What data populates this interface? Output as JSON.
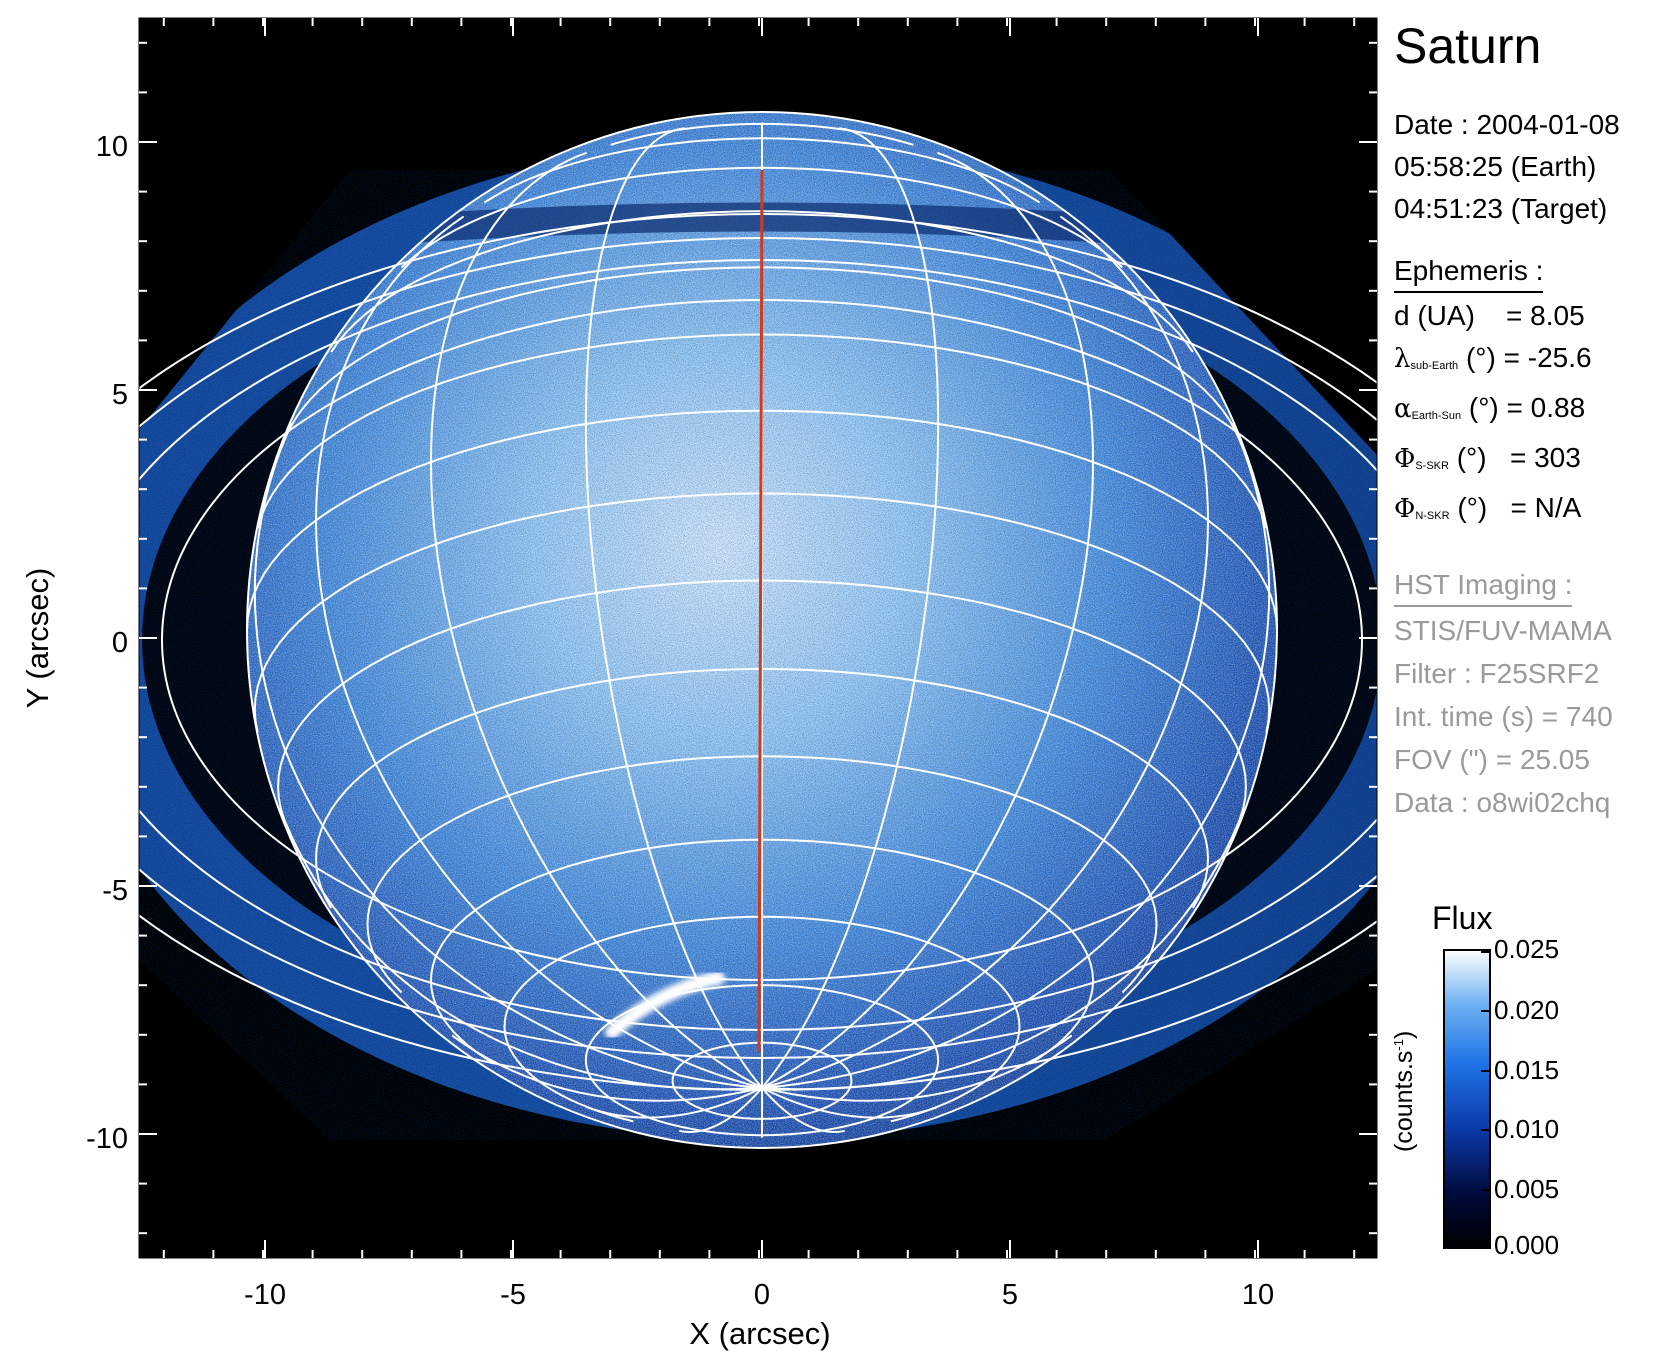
{
  "figure": {
    "x_axis": {
      "label": "X (arcsec)",
      "ticks": [
        "-10",
        "-5",
        "0",
        "5",
        "10"
      ]
    },
    "y_axis": {
      "label": "Y (arcsec)",
      "ticks": [
        "10",
        "5",
        "0",
        "-5",
        "-10"
      ]
    },
    "x_range": [
      -12.5,
      12.5
    ],
    "y_range": [
      -12.5,
      12.5
    ],
    "image_colormap": [
      "#000000",
      "#000a3c",
      "#0a3aa8",
      "#1f73e6",
      "#6fb2f2",
      "#ffffff"
    ]
  },
  "info": {
    "title": "Saturn",
    "date_lines": [
      "Date : 2004-01-08",
      "05:58:25 (Earth)",
      "04:51:23 (Target)"
    ],
    "ephemeris": {
      "heading": "Ephemeris :",
      "d_label": "d (UA)",
      "d_value": "= 8.05",
      "lambda_symbol": "λ",
      "lambda_sub": "sub-Earth",
      "lambda_unit": "(°)",
      "lambda_value": "= -25.6",
      "alpha_symbol": "α",
      "alpha_sub": "Earth-Sun",
      "alpha_unit": "(°)",
      "alpha_value": "= 0.88",
      "phi_s_symbol": "Φ",
      "phi_s_sub": "S-SKR",
      "phi_s_unit": "(°)",
      "phi_s_value": "= 303",
      "phi_n_symbol": "Φ",
      "phi_n_sub": "N-SKR",
      "phi_n_unit": "(°)",
      "phi_n_value": "= N/A"
    },
    "hst": {
      "heading": "HST Imaging :",
      "lines": [
        "STIS/FUV-MAMA",
        "Filter : F25SRF2",
        "Int. time (s) = 740",
        "FOV (\") = 25.05",
        "Data : o8wi02chq"
      ]
    }
  },
  "colorbar": {
    "title": "Flux",
    "unit_text": "(counts.s",
    "unit_sup": "-1",
    "unit_close": ")",
    "ticks": [
      "0.025",
      "0.020",
      "0.015",
      "0.010",
      "0.005",
      "0.000"
    ],
    "range": [
      0.0,
      0.025
    ]
  }
}
